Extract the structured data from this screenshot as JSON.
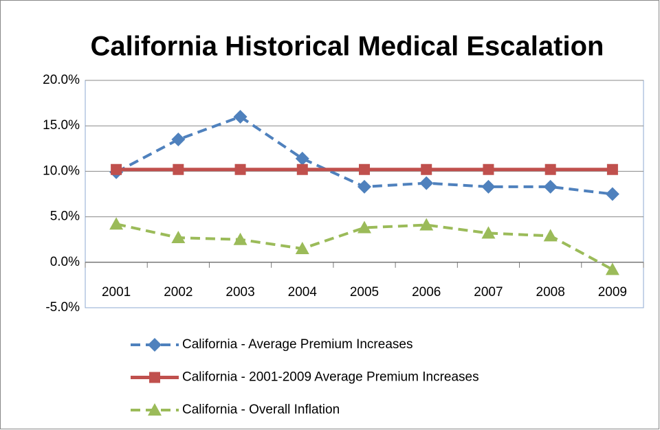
{
  "chart_data": {
    "type": "line",
    "title": "California Historical Medical Escalation",
    "categories": [
      "2001",
      "2002",
      "2003",
      "2004",
      "2005",
      "2006",
      "2007",
      "2008",
      "2009"
    ],
    "series": [
      {
        "name": "California - Average Premium Increases",
        "color": "#4f81bd",
        "line_style": "dashed",
        "marker": "diamond",
        "values": [
          9.9,
          13.5,
          16.0,
          11.4,
          8.3,
          8.7,
          8.3,
          8.3,
          7.5
        ]
      },
      {
        "name": "California - 2001-2009 Average Premium Increases",
        "color": "#c0504d",
        "line_style": "solid",
        "marker": "square",
        "values": [
          10.2,
          10.2,
          10.2,
          10.2,
          10.2,
          10.2,
          10.2,
          10.2,
          10.2
        ]
      },
      {
        "name": "California - Overall Inflation",
        "color": "#9bbb59",
        "line_style": "dashed",
        "marker": "triangle",
        "values": [
          4.2,
          2.7,
          2.5,
          1.5,
          3.8,
          4.1,
          3.2,
          2.9,
          -0.8
        ]
      }
    ],
    "ylim": [
      -5,
      20
    ],
    "yticks": [
      {
        "value": -5,
        "label": "-5.0%"
      },
      {
        "value": 0,
        "label": "0.0%"
      },
      {
        "value": 5,
        "label": "5.0%"
      },
      {
        "value": 10,
        "label": "10.0%"
      },
      {
        "value": 15,
        "label": "15.0%"
      },
      {
        "value": 20,
        "label": "20.0%"
      }
    ],
    "grid": true,
    "legend": "bottom"
  }
}
